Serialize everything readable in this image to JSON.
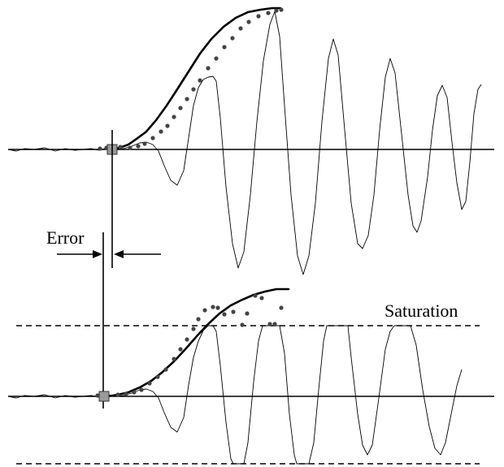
{
  "labels": {
    "error": "Error",
    "saturation": "Saturation"
  },
  "colors": {
    "line": "#000000",
    "dots": "#444444",
    "marker": "#9a9a9a"
  }
}
